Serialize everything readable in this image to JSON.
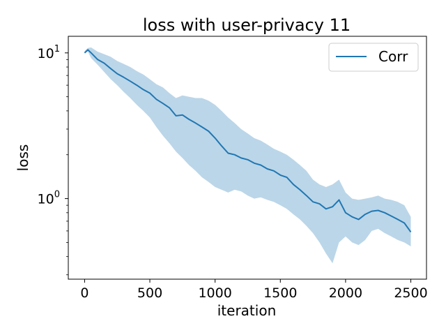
{
  "chart_data": {
    "type": "line",
    "title": "loss with user-privacy  11",
    "xlabel": "iteration",
    "ylabel": "loss",
    "yscale": "log",
    "xlim": [
      -125,
      2620
    ],
    "ylim": [
      0.28,
      13.0
    ],
    "xticks": [
      0,
      500,
      1000,
      1500,
      2000,
      2500
    ],
    "yticks": [
      {
        "value": 1,
        "base": "10",
        "exp": "0"
      },
      {
        "value": 10,
        "base": "10",
        "exp": "1"
      }
    ],
    "grid": false,
    "legend": {
      "position": "top-right"
    },
    "colors": {
      "line": "#1f77b4",
      "band": "#1f77b4"
    },
    "series": [
      {
        "name": "Corr",
        "x": [
          0,
          25,
          50,
          100,
          150,
          200,
          250,
          300,
          350,
          400,
          450,
          500,
          550,
          600,
          650,
          700,
          750,
          800,
          850,
          900,
          950,
          1000,
          1050,
          1100,
          1150,
          1200,
          1250,
          1300,
          1350,
          1400,
          1450,
          1500,
          1550,
          1600,
          1650,
          1700,
          1750,
          1800,
          1850,
          1900,
          1950,
          2000,
          2050,
          2100,
          2150,
          2200,
          2250,
          2300,
          2350,
          2400,
          2450,
          2500
        ],
        "y": [
          10.0,
          10.5,
          10.0,
          9.0,
          8.5,
          7.8,
          7.2,
          6.8,
          6.4,
          6.0,
          5.6,
          5.3,
          4.8,
          4.5,
          4.2,
          3.7,
          3.75,
          3.5,
          3.3,
          3.1,
          2.9,
          2.6,
          2.3,
          2.05,
          2.0,
          1.9,
          1.85,
          1.75,
          1.7,
          1.6,
          1.55,
          1.45,
          1.4,
          1.25,
          1.15,
          1.05,
          0.95,
          0.92,
          0.85,
          0.88,
          0.98,
          0.8,
          0.75,
          0.72,
          0.78,
          0.82,
          0.83,
          0.8,
          0.76,
          0.72,
          0.68,
          0.59
        ],
        "lower": [
          10.0,
          10.2,
          9.2,
          8.3,
          7.4,
          6.6,
          6.0,
          5.4,
          4.9,
          4.4,
          4.0,
          3.6,
          3.1,
          2.7,
          2.4,
          2.1,
          1.9,
          1.7,
          1.55,
          1.4,
          1.3,
          1.2,
          1.15,
          1.1,
          1.15,
          1.12,
          1.05,
          1.0,
          1.02,
          0.98,
          0.95,
          0.9,
          0.85,
          0.78,
          0.72,
          0.65,
          0.58,
          0.5,
          0.42,
          0.36,
          0.5,
          0.55,
          0.5,
          0.48,
          0.52,
          0.6,
          0.62,
          0.58,
          0.55,
          0.52,
          0.5,
          0.47
        ],
        "upper": [
          10.3,
          10.8,
          10.9,
          10.2,
          9.8,
          9.4,
          8.8,
          8.4,
          8.0,
          7.5,
          7.1,
          6.6,
          6.1,
          5.8,
          5.3,
          4.9,
          5.1,
          5.0,
          4.9,
          4.9,
          4.7,
          4.4,
          4.0,
          3.6,
          3.3,
          3.0,
          2.8,
          2.6,
          2.5,
          2.35,
          2.2,
          2.1,
          2.0,
          1.85,
          1.7,
          1.55,
          1.35,
          1.25,
          1.2,
          1.25,
          1.35,
          1.1,
          1.0,
          0.98,
          1.0,
          1.02,
          1.05,
          1.0,
          0.98,
          0.95,
          0.9,
          0.75
        ]
      }
    ]
  }
}
